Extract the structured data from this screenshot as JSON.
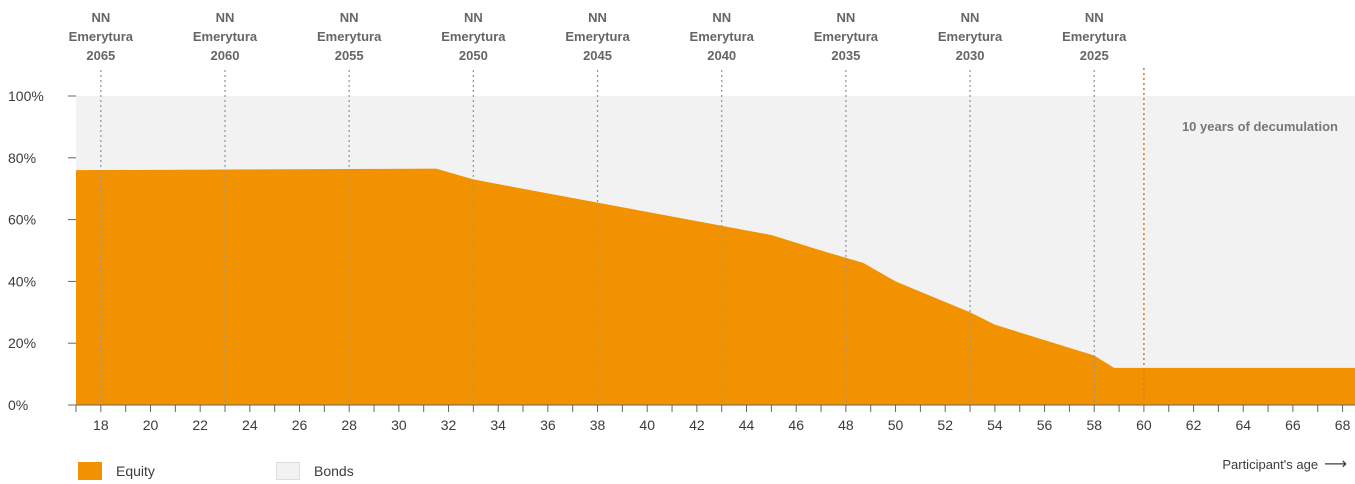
{
  "chart_data": {
    "type": "area",
    "x": [
      17,
      31.5,
      33,
      35,
      37,
      39,
      41,
      43,
      45,
      47,
      48.7,
      50,
      51.5,
      53,
      54,
      56,
      58,
      58.8,
      60,
      68.5
    ],
    "series": [
      {
        "name": "Equity",
        "color": "#f39200",
        "values": [
          76,
          76.5,
          73,
          70,
          67,
          64,
          61,
          58,
          55,
          50,
          46,
          40,
          35,
          30,
          26,
          21,
          16,
          12,
          12,
          12
        ]
      },
      {
        "name": "Bonds",
        "color": "#f2f2f2",
        "values": [
          24,
          23.5,
          27,
          30,
          33,
          36,
          39,
          42,
          45,
          50,
          54,
          60,
          65,
          70,
          74,
          79,
          84,
          88,
          88,
          88
        ]
      }
    ],
    "xlim": [
      17,
      68.5
    ],
    "ylim": [
      0,
      100
    ],
    "x_ticks": [
      18,
      20,
      22,
      24,
      26,
      28,
      30,
      32,
      34,
      36,
      38,
      40,
      42,
      44,
      46,
      48,
      50,
      52,
      54,
      56,
      58,
      60,
      62,
      64,
      66,
      68
    ],
    "y_ticks": [
      "0%",
      "20%",
      "40%",
      "60%",
      "80%",
      "100%"
    ],
    "y_tick_values": [
      0,
      20,
      40,
      60,
      80,
      100
    ],
    "xlabel": "Participant's age",
    "ylabel": "",
    "grid": false,
    "legend": "bottom-left",
    "funds": [
      {
        "line1": "NN",
        "line2": "Emerytura",
        "line3": "2065",
        "age": 18
      },
      {
        "line1": "NN",
        "line2": "Emerytura",
        "line3": "2060",
        "age": 23
      },
      {
        "line1": "NN",
        "line2": "Emerytura",
        "line3": "2055",
        "age": 28
      },
      {
        "line1": "NN",
        "line2": "Emerytura",
        "line3": "2050",
        "age": 33
      },
      {
        "line1": "NN",
        "line2": "Emerytura",
        "line3": "2045",
        "age": 38
      },
      {
        "line1": "NN",
        "line2": "Emerytura",
        "line3": "2040",
        "age": 43
      },
      {
        "line1": "NN",
        "line2": "Emerytura",
        "line3": "2035",
        "age": 48
      },
      {
        "line1": "NN",
        "line2": "Emerytura",
        "line3": "2030",
        "age": 53
      },
      {
        "line1": "NN",
        "line2": "Emerytura",
        "line3": "2025",
        "age": 58
      }
    ],
    "retirement_age": 60,
    "annotation": "10 years of decumulation",
    "colors": {
      "equity": "#f39200",
      "bonds": "#f2f2f2",
      "fund_line": "#999999",
      "retirement_line": "#e87722"
    }
  },
  "legend": {
    "equity_label": "Equity",
    "bonds_label": "Bonds"
  },
  "axis": {
    "x_title": "Participant's age",
    "arrow": "⟶"
  }
}
